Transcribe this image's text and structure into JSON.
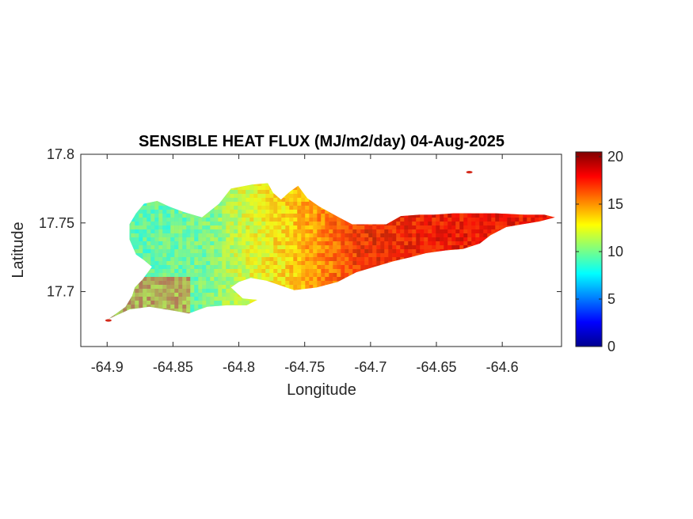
{
  "chart_data": {
    "type": "heatmap",
    "title": "SENSIBLE HEAT FLUX (MJ/m2/day) 04-Aug-2025",
    "xlabel": "Longitude",
    "ylabel": "Latitude",
    "xlim": [
      -64.92,
      -64.555
    ],
    "ylim": [
      17.66,
      17.8
    ],
    "x_ticks": [
      -64.9,
      -64.85,
      -64.8,
      -64.75,
      -64.7,
      -64.65,
      -64.6
    ],
    "x_tick_labels": [
      "-64.9",
      "-64.85",
      "-64.8",
      "-64.75",
      "-64.7",
      "-64.65",
      "-64.6"
    ],
    "y_ticks": [
      17.7,
      17.75,
      17.8
    ],
    "y_tick_labels": [
      "17.7",
      "17.75",
      "17.8"
    ],
    "colorbar": {
      "colormap": "jet",
      "range": [
        0,
        20.5
      ],
      "ticks": [
        0,
        5,
        10,
        15,
        20
      ],
      "tick_labels": [
        "0",
        "5",
        "10",
        "15",
        "20"
      ]
    },
    "grid": false,
    "island_outline": [
      [
        -64.899,
        17.68
      ],
      [
        -64.893,
        17.684
      ],
      [
        -64.886,
        17.689
      ],
      [
        -64.881,
        17.697
      ],
      [
        -64.879,
        17.703
      ],
      [
        -64.873,
        17.709
      ],
      [
        -64.866,
        17.718
      ],
      [
        -64.872,
        17.723
      ],
      [
        -64.878,
        17.727
      ],
      [
        -64.883,
        17.738
      ],
      [
        -64.883,
        17.749
      ],
      [
        -64.878,
        17.757
      ],
      [
        -64.872,
        17.764
      ],
      [
        -64.862,
        17.766
      ],
      [
        -64.853,
        17.762
      ],
      [
        -64.842,
        17.758
      ],
      [
        -64.828,
        17.754
      ],
      [
        -64.815,
        17.764
      ],
      [
        -64.806,
        17.775
      ],
      [
        -64.79,
        17.778
      ],
      [
        -64.778,
        17.779
      ],
      [
        -64.774,
        17.772
      ],
      [
        -64.768,
        17.767
      ],
      [
        -64.761,
        17.773
      ],
      [
        -64.755,
        17.777
      ],
      [
        -64.748,
        17.768
      ],
      [
        -64.739,
        17.762
      ],
      [
        -64.724,
        17.754
      ],
      [
        -64.714,
        17.749
      ],
      [
        -64.703,
        17.749
      ],
      [
        -64.688,
        17.749
      ],
      [
        -64.677,
        17.755
      ],
      [
        -64.663,
        17.756
      ],
      [
        -64.652,
        17.756
      ],
      [
        -64.637,
        17.757
      ],
      [
        -64.621,
        17.757
      ],
      [
        -64.605,
        17.757
      ],
      [
        -64.583,
        17.756
      ],
      [
        -64.568,
        17.756
      ],
      [
        -64.56,
        17.754
      ],
      [
        -64.572,
        17.751
      ],
      [
        -64.585,
        17.749
      ],
      [
        -64.597,
        17.747
      ],
      [
        -64.609,
        17.741
      ],
      [
        -64.617,
        17.735
      ],
      [
        -64.63,
        17.731
      ],
      [
        -64.643,
        17.73
      ],
      [
        -64.658,
        17.728
      ],
      [
        -64.67,
        17.725
      ],
      [
        -64.683,
        17.722
      ],
      [
        -64.697,
        17.718
      ],
      [
        -64.711,
        17.714
      ],
      [
        -64.725,
        17.707
      ],
      [
        -64.741,
        17.703
      ],
      [
        -64.758,
        17.701
      ],
      [
        -64.779,
        17.708
      ],
      [
        -64.791,
        17.71
      ],
      [
        -64.8,
        17.707
      ],
      [
        -64.806,
        17.703
      ],
      [
        -64.797,
        17.695
      ],
      [
        -64.786,
        17.694
      ],
      [
        -64.794,
        17.69
      ],
      [
        -64.809,
        17.69
      ],
      [
        -64.824,
        17.689
      ],
      [
        -64.838,
        17.684
      ],
      [
        -64.849,
        17.686
      ],
      [
        -64.868,
        17.689
      ],
      [
        -64.883,
        17.687
      ]
    ],
    "rocks": [
      {
        "lon": -64.625,
        "lat": 17.787
      },
      {
        "lon": -64.899,
        "lat": 17.679
      }
    ]
  }
}
